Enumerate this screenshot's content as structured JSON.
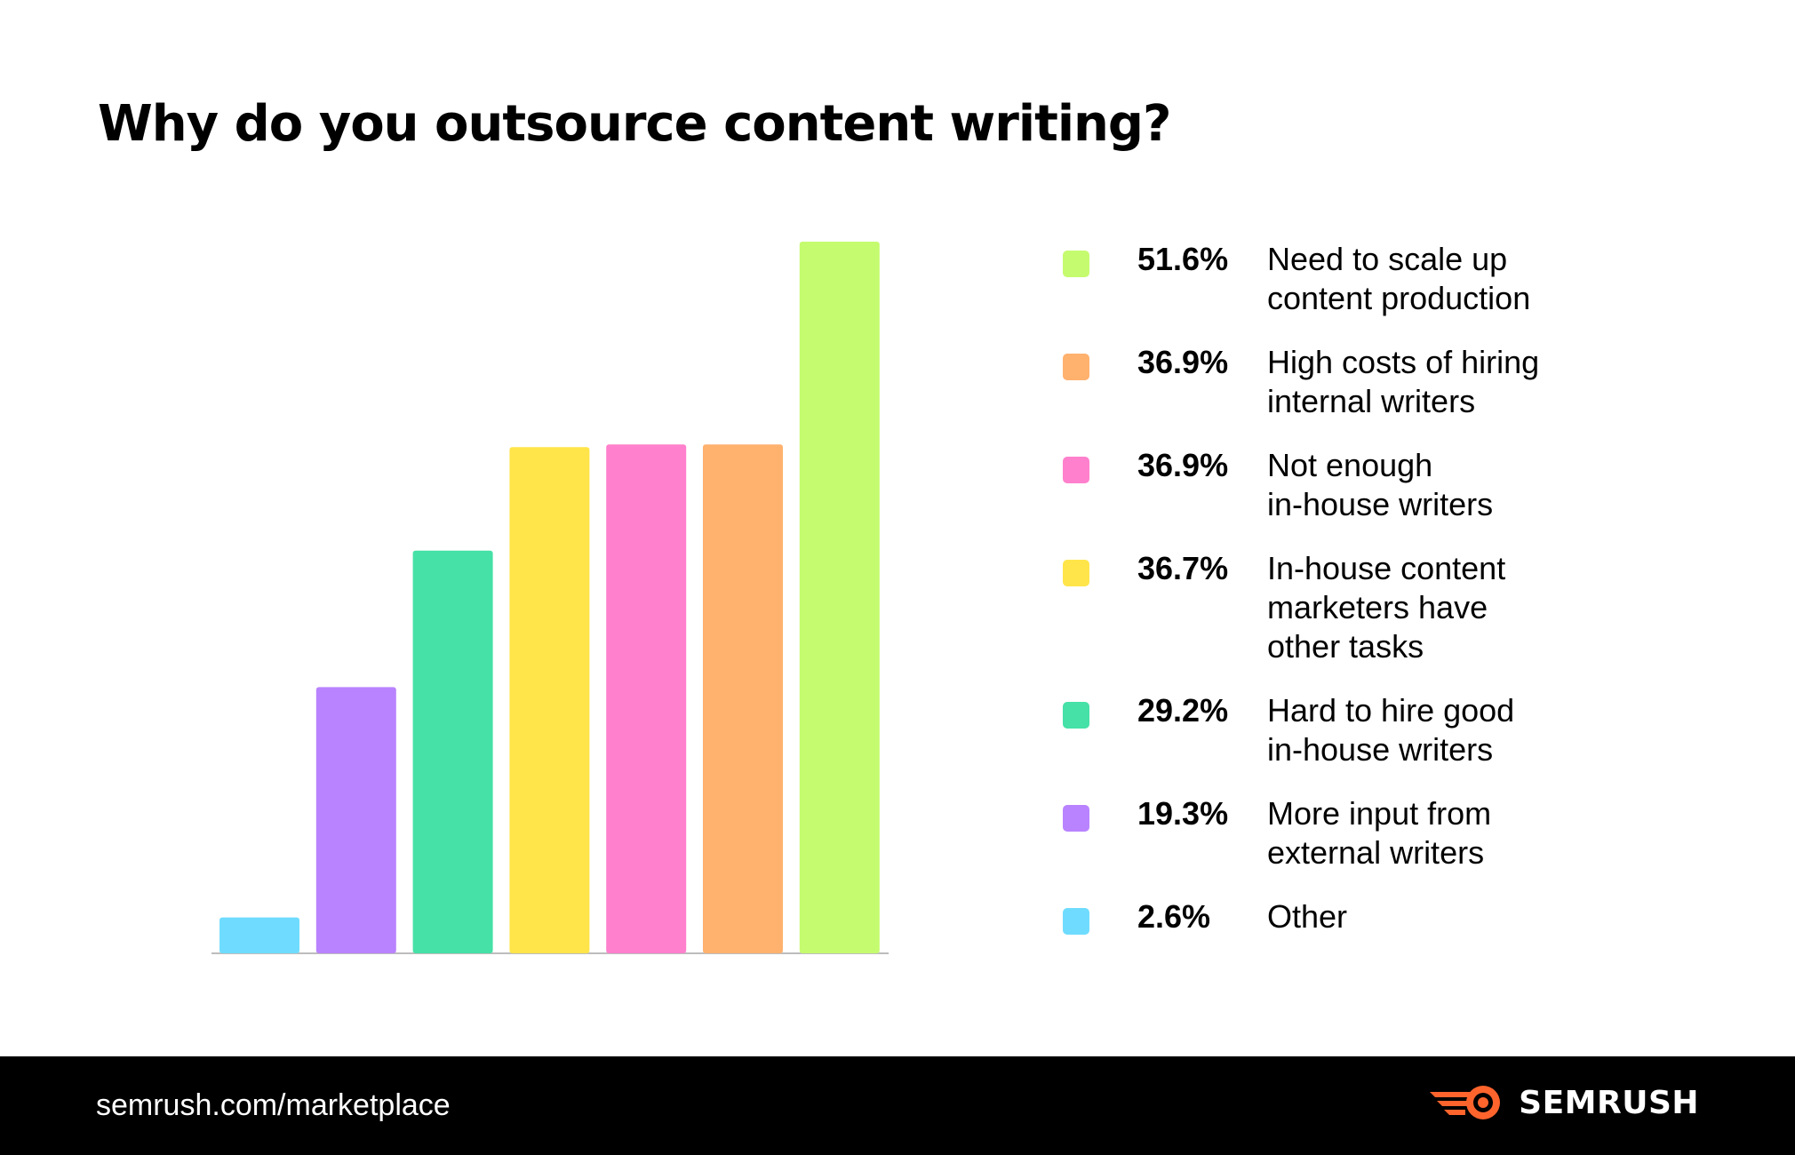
{
  "title": "Why do you outsource content writing?",
  "chart_data": {
    "type": "bar",
    "title": "Why do you outsource content writing?",
    "categories": [
      "Other",
      "More input from external writers",
      "Hard to hire good in-house writers",
      "In-house content marketers have other tasks",
      "Not enough in-house writers",
      "High costs of hiring internal writers",
      "Need to scale up content production"
    ],
    "values": [
      2.6,
      19.3,
      29.2,
      36.7,
      36.9,
      36.9,
      51.6
    ],
    "colors": [
      "#6fdcff",
      "#b983ff",
      "#45e1a7",
      "#ffe54a",
      "#ff80cc",
      "#ffb16e",
      "#c5fb6e"
    ],
    "ylim": [
      0,
      51.6
    ],
    "xlabel": "",
    "ylabel": "",
    "grid": false,
    "legend_position": "right"
  },
  "legend": [
    {
      "percent": "51.6%",
      "label": "Need to scale up\ncontent production",
      "color": "#c5fb6e"
    },
    {
      "percent": "36.9%",
      "label": "High costs of hiring\ninternal writers",
      "color": "#ffb16e"
    },
    {
      "percent": "36.9%",
      "label": "Not enough\nin-house writers",
      "color": "#ff80cc"
    },
    {
      "percent": "36.7%",
      "label": "In-house content\nmarketers have\nother tasks",
      "color": "#ffe54a"
    },
    {
      "percent": "29.2%",
      "label": "Hard to hire good\nin-house writers",
      "color": "#45e1a7"
    },
    {
      "percent": "19.3%",
      "label": "More input from\nexternal writers",
      "color": "#b983ff"
    },
    {
      "percent": "2.6%",
      "label": "Other",
      "color": "#6fdcff"
    }
  ],
  "footer": {
    "url": "semrush.com/marketplace",
    "brand": "SEMRUSH",
    "logo_icon": "semrush-flame-logo-icon",
    "brand_color": "#ff642d"
  }
}
